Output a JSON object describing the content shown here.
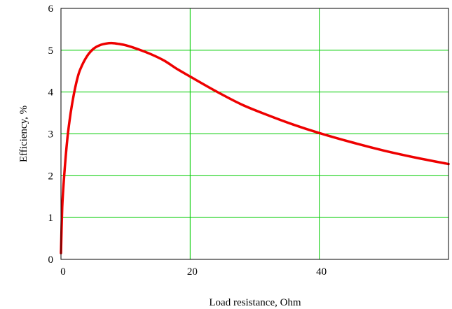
{
  "chart_data": {
    "type": "line",
    "title": "",
    "xlabel": "Load resistance, Ohm",
    "ylabel": "Efficiency, %",
    "xlim": [
      0,
      60
    ],
    "ylim": [
      0,
      6
    ],
    "x_ticks": [
      0,
      20,
      40
    ],
    "y_ticks": [
      0,
      1,
      2,
      3,
      4,
      5,
      6
    ],
    "grid": true,
    "grid_color": "#00cc00",
    "series": [
      {
        "color": "#ee0000",
        "x": [
          0,
          0.2,
          0.5,
          1,
          1.5,
          2,
          2.5,
          3,
          4,
          5,
          6,
          7,
          8,
          9,
          10,
          12,
          14,
          16,
          18,
          20,
          24,
          28,
          32,
          36,
          40,
          45,
          50,
          55,
          60
        ],
        "y": [
          0.15,
          1.25,
          2.0,
          2.9,
          3.5,
          3.95,
          4.3,
          4.55,
          4.85,
          5.03,
          5.12,
          5.16,
          5.17,
          5.15,
          5.12,
          5.02,
          4.9,
          4.75,
          4.55,
          4.37,
          4.02,
          3.7,
          3.45,
          3.22,
          3.02,
          2.8,
          2.6,
          2.43,
          2.28
        ]
      }
    ]
  }
}
